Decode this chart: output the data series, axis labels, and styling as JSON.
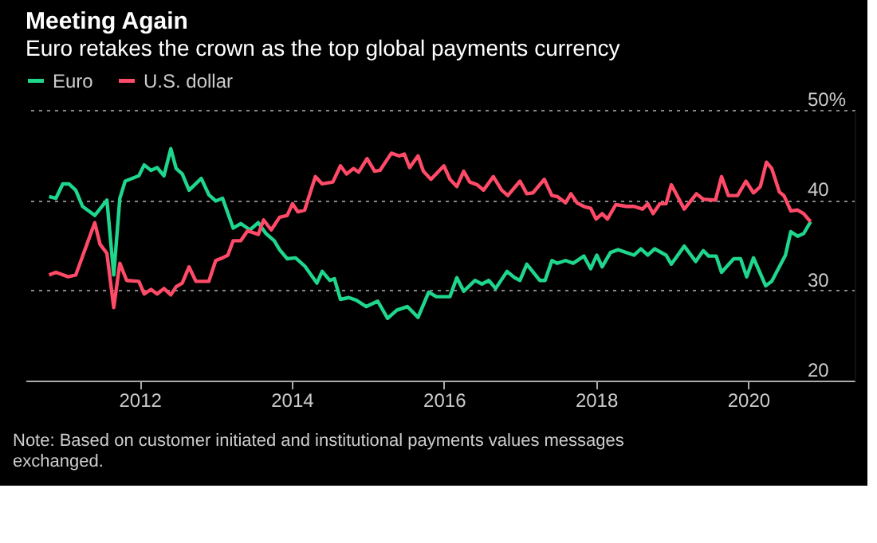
{
  "chart_data": {
    "type": "line",
    "title": "Meeting Again",
    "subtitle": "Euro retakes the crown as the top global payments currency",
    "xlim": [
      2010.5,
      2021.4
    ],
    "xticks": [
      2012,
      2014,
      2016,
      2018,
      2020
    ],
    "ylim": [
      20,
      50
    ],
    "yticks": [
      20,
      30,
      40,
      {
        "value": 50,
        "label": "50%"
      }
    ],
    "grid": "y",
    "legend": "top left",
    "annotations": [
      "Note: Based on customer initiated and institutional payments values messages exchanged."
    ],
    "series": [
      {
        "name": "Euro",
        "color": "#1fd68d",
        "x": [
          2010.81,
          2010.9,
          2010.99,
          2011.07,
          2011.16,
          2011.25,
          2011.41,
          2011.57,
          2011.66,
          2011.74,
          2011.81,
          2011.99,
          2012.06,
          2012.15,
          2012.23,
          2012.32,
          2012.41,
          2012.48,
          2012.56,
          2012.65,
          2012.81,
          2012.91,
          2013.0,
          2013.09,
          2013.23,
          2013.33,
          2013.45,
          2013.56,
          2013.66,
          2013.77,
          2013.84,
          2013.94,
          2014.05,
          2014.17,
          2014.33,
          2014.4,
          2014.5,
          2014.56,
          2014.64,
          2014.75,
          2014.85,
          2014.98,
          2015.13,
          2015.26,
          2015.38,
          2015.52,
          2015.66,
          2015.8,
          2015.9,
          2016.08,
          2016.17,
          2016.26,
          2016.41,
          2016.5,
          2016.59,
          2016.68,
          2016.83,
          2016.93,
          2017.0,
          2017.09,
          2017.26,
          2017.33,
          2017.42,
          2017.49,
          2017.6,
          2017.7,
          2017.84,
          2017.93,
          2018.01,
          2018.08,
          2018.19,
          2018.29,
          2018.5,
          2018.59,
          2018.68,
          2018.77,
          2018.92,
          2018.99,
          2019.16,
          2019.31,
          2019.41,
          2019.48,
          2019.58,
          2019.65,
          2019.81,
          2019.9,
          2019.98,
          2020.07,
          2020.23,
          2020.31,
          2020.49,
          2020.56,
          2020.65,
          2020.73,
          2020.82
        ],
        "values": [
          40.4,
          40.2,
          41.8,
          41.8,
          41.1,
          39.3,
          38.3,
          40.0,
          31.7,
          40.2,
          42.1,
          42.7,
          43.9,
          43.3,
          43.6,
          42.7,
          45.7,
          43.5,
          42.9,
          41.1,
          42.4,
          40.6,
          39.9,
          40.2,
          36.9,
          37.4,
          36.7,
          37.5,
          36.3,
          35.5,
          34.5,
          33.5,
          33.6,
          32.7,
          30.8,
          32.1,
          31.1,
          31.3,
          29.0,
          29.2,
          28.9,
          28.2,
          28.8,
          26.9,
          27.8,
          28.2,
          27.0,
          29.8,
          29.3,
          29.3,
          31.4,
          29.9,
          31.1,
          30.7,
          31.1,
          30.2,
          32.1,
          31.4,
          31.1,
          32.9,
          31.1,
          31.1,
          33.3,
          33.0,
          33.3,
          33.0,
          33.8,
          32.4,
          33.9,
          32.6,
          34.2,
          34.5,
          33.9,
          34.6,
          33.9,
          34.6,
          33.9,
          32.9,
          34.9,
          33.2,
          34.4,
          33.8,
          33.8,
          32.0,
          33.5,
          33.5,
          31.5,
          33.6,
          30.5,
          31.0,
          33.9,
          36.5,
          36.0,
          36.3,
          37.6
        ]
      },
      {
        "name": "U.S. dollar",
        "color": "#ff4a68",
        "x": [
          2010.81,
          2010.9,
          2011.06,
          2011.16,
          2011.41,
          2011.48,
          2011.57,
          2011.66,
          2011.74,
          2011.83,
          2011.99,
          2012.06,
          2012.15,
          2012.23,
          2012.32,
          2012.41,
          2012.48,
          2012.56,
          2012.65,
          2012.74,
          2012.91,
          2013.0,
          2013.09,
          2013.16,
          2013.23,
          2013.33,
          2013.42,
          2013.56,
          2013.63,
          2013.73,
          2013.84,
          2013.94,
          2014.01,
          2014.08,
          2014.17,
          2014.31,
          2014.4,
          2014.54,
          2014.64,
          2014.72,
          2014.81,
          2014.88,
          2014.99,
          2015.09,
          2015.16,
          2015.31,
          2015.41,
          2015.48,
          2015.55,
          2015.66,
          2015.73,
          2015.83,
          2016.0,
          2016.08,
          2016.17,
          2016.26,
          2016.34,
          2016.44,
          2016.52,
          2016.65,
          2016.76,
          2016.84,
          2017.0,
          2017.09,
          2017.17,
          2017.32,
          2017.42,
          2017.49,
          2017.6,
          2017.67,
          2017.75,
          2017.84,
          2017.93,
          2018.0,
          2018.08,
          2018.15,
          2018.26,
          2018.4,
          2018.5,
          2018.61,
          2018.68,
          2018.75,
          2018.84,
          2018.92,
          2018.99,
          2019.16,
          2019.32,
          2019.41,
          2019.57,
          2019.65,
          2019.74,
          2019.86,
          2019.97,
          2020.07,
          2020.16,
          2020.24,
          2020.31,
          2020.41,
          2020.47,
          2020.56,
          2020.65,
          2020.73,
          2020.82
        ],
        "values": [
          31.7,
          32.0,
          31.5,
          31.7,
          37.5,
          35.1,
          34.1,
          28.1,
          33.0,
          31.1,
          31.0,
          29.6,
          30.1,
          29.6,
          30.2,
          29.5,
          30.4,
          30.8,
          32.6,
          31.0,
          31.0,
          33.3,
          33.6,
          33.9,
          35.5,
          35.5,
          36.6,
          36.2,
          37.8,
          36.7,
          38.1,
          38.3,
          39.6,
          38.7,
          38.9,
          42.6,
          41.8,
          42.0,
          43.8,
          42.9,
          43.5,
          43.1,
          44.6,
          43.2,
          43.3,
          45.2,
          44.9,
          45.1,
          43.6,
          44.9,
          43.2,
          42.3,
          43.8,
          42.3,
          41.5,
          43.2,
          42.0,
          41.7,
          41.1,
          42.6,
          41.1,
          40.5,
          42.1,
          40.7,
          40.8,
          42.3,
          40.5,
          40.4,
          39.7,
          40.7,
          39.7,
          39.3,
          39.1,
          37.9,
          38.5,
          37.9,
          39.5,
          39.3,
          39.3,
          39.0,
          39.6,
          38.5,
          39.6,
          39.6,
          41.7,
          39.0,
          40.7,
          40.1,
          40.0,
          42.6,
          40.5,
          40.5,
          42.1,
          40.8,
          41.5,
          44.2,
          43.5,
          40.9,
          40.5,
          38.8,
          38.9,
          38.5,
          37.6
        ]
      }
    ]
  }
}
